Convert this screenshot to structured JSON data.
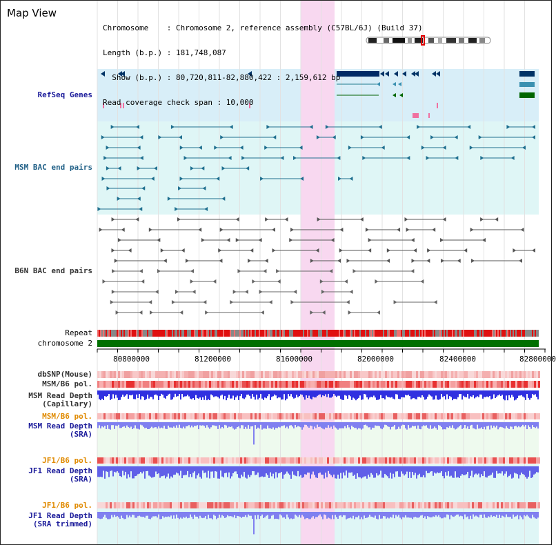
{
  "title": "Map View",
  "info": {
    "chromosome": "Chromosome    : Chromosome 2, reference assembly (C57BL/6J) (Build 37)",
    "length": "Length (b.p.) : 181,748,087",
    "show": "  Show (b.p.) : 80,720,811-82,880,422 : 2,159,612 bp",
    "coverage": "Read coverage check span : 10,000"
  },
  "tracks": {
    "refseq": "RefSeq Genes",
    "msm_bac": "MSM BAC end pairs",
    "b6n_bac": "B6N BAC end pairs",
    "repeat": "Repeat",
    "chromosome": "chromosome 2",
    "dbsnp": "dbSNP(Mouse)",
    "msm_b6_pol": "MSM/B6 pol.",
    "msm_depth_cap_1": "MSM Read Depth",
    "msm_depth_cap_2": "(Capillary)",
    "msm_b6_pol2": "MSM/B6 pol.",
    "msm_depth_sra_1": "MSM Read Depth",
    "msm_depth_sra_2": "(SRA)",
    "jf1_pol": "JF1/B6 pol.",
    "jf1_depth_1": "JF1 Read Depth",
    "jf1_depth_2": "(SRA)",
    "jf1_pol2": "JF1/B6 pol.",
    "jf1_trim_1": "JF1 Read Depth",
    "jf1_trim_2": "(SRA trimmed)"
  },
  "axis": {
    "ticks": [
      "80800000",
      "81200000",
      "81600000",
      "82000000",
      "82400000",
      "82800000"
    ]
  },
  "colors": {
    "highlight": "#f8d8f0",
    "refseq_bg": "#d8eef8",
    "bac_bg": "#dff6f6",
    "chromosome": "#007000",
    "depth": "#3030e0",
    "depth_light": "#8080f0"
  }
}
